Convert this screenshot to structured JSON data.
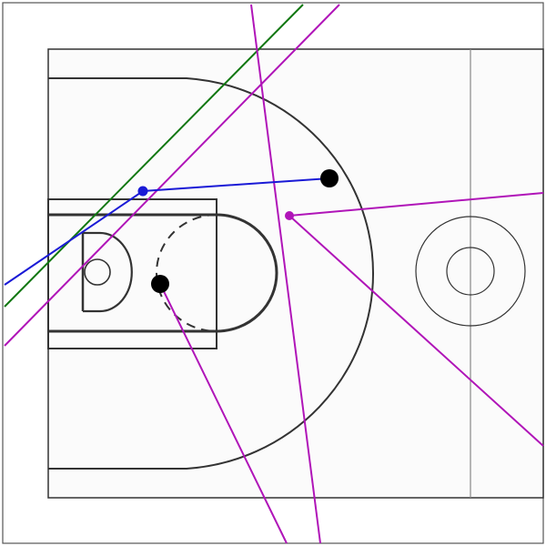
{
  "colors": {
    "background": "#ffffff",
    "frame": "#555555",
    "court_lines": "#333333",
    "half_court_line": "#888888",
    "blue_line": "#1a1ad6",
    "green_line": "#117711",
    "magenta_line": "#b015b8",
    "player_marker": "#000000"
  },
  "diagram": {
    "type": "basketball-half-court-play",
    "players_count": 2,
    "blue_pass_count": 1,
    "green_line_count": 1,
    "magenta_line_count": 5
  }
}
